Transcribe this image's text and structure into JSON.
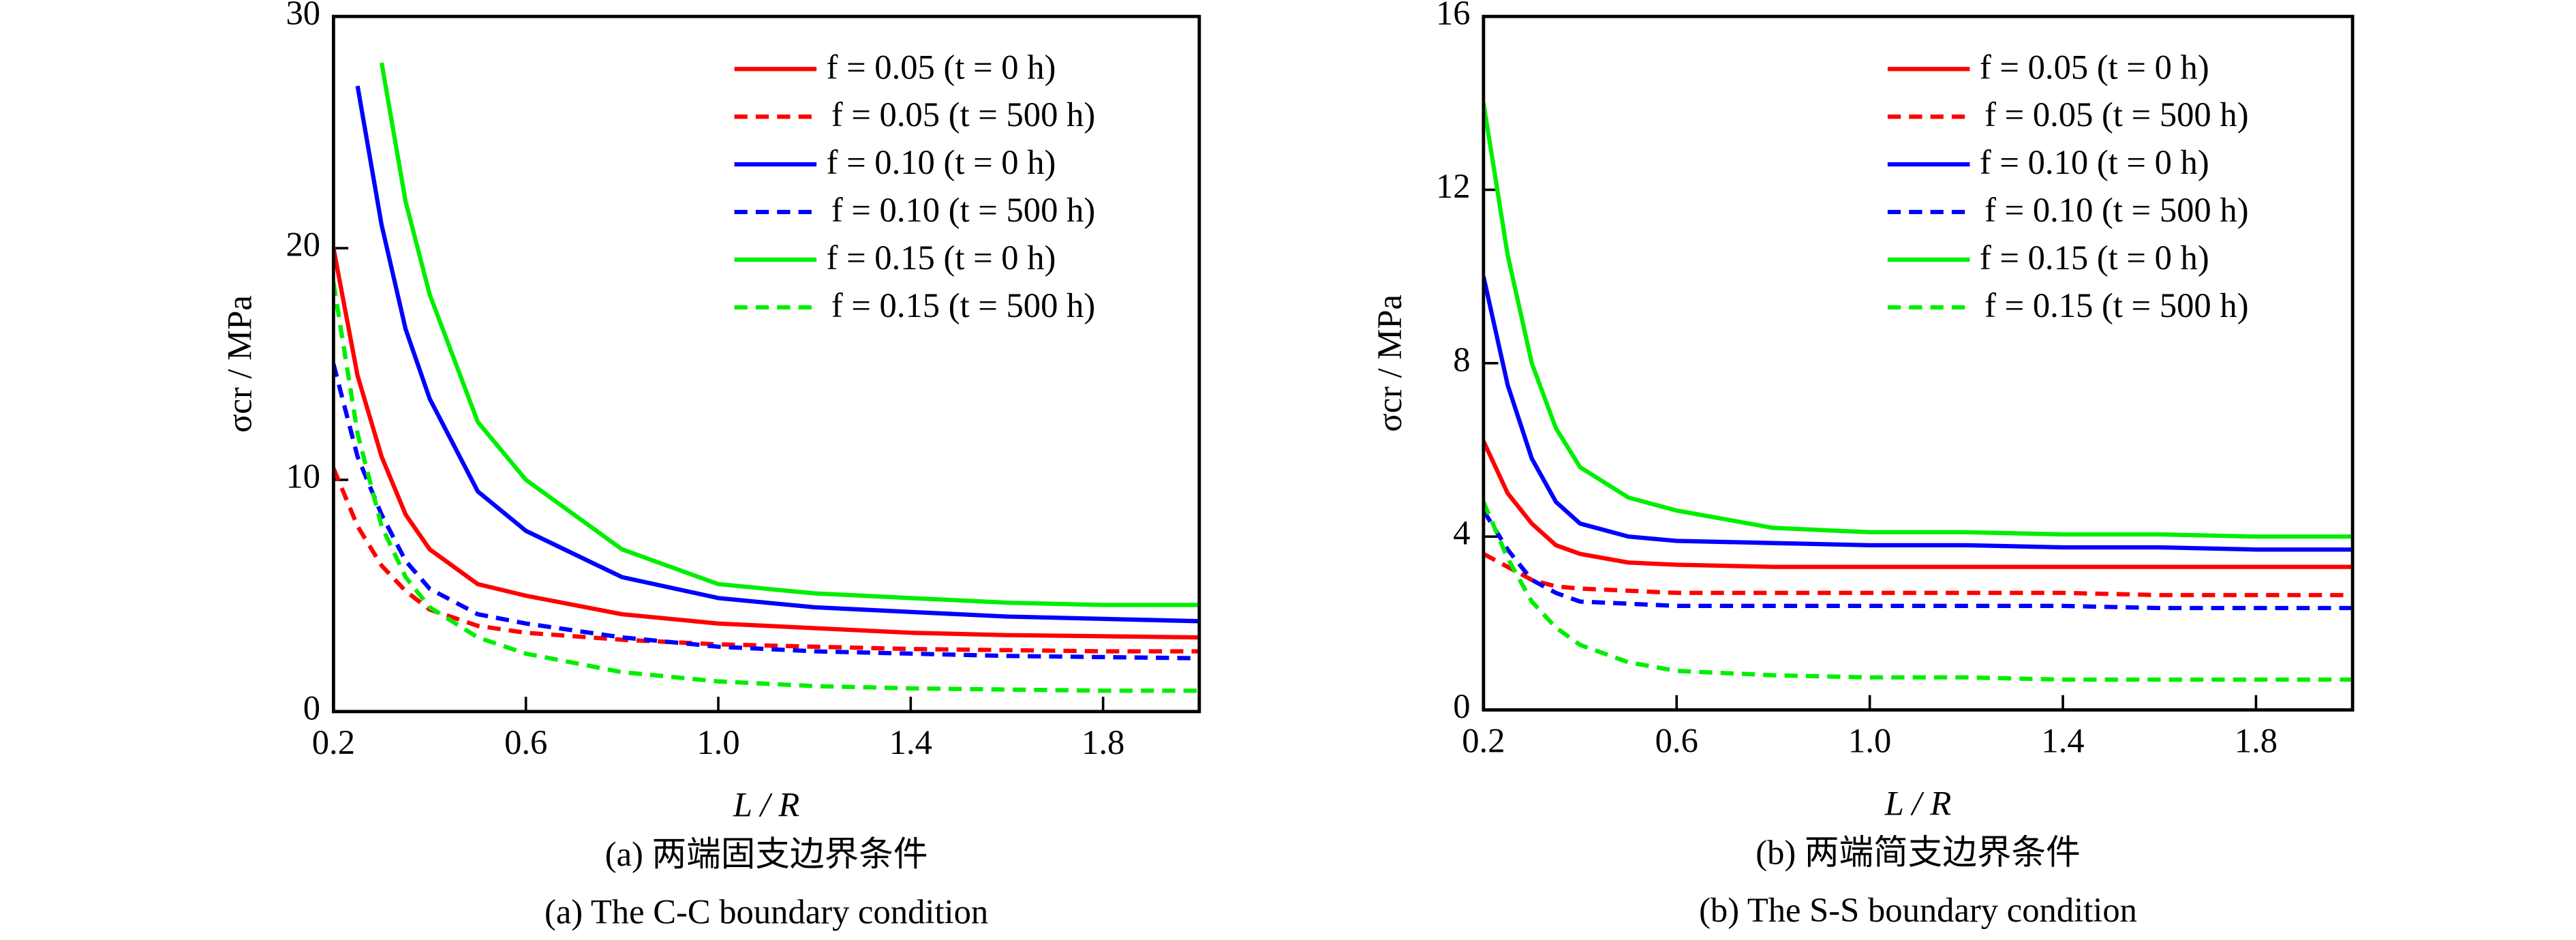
{
  "chart_data": [
    {
      "type": "line",
      "x_label": "L / R",
      "y_label": "σcr / MPa",
      "caption": "(a) 两端固支边界条件",
      "caption_en": "(a) The C-C boundary condition",
      "xlim": [
        0.2,
        2.0
      ],
      "xticks": [
        0.2,
        0.6,
        {
          "value": 1.0,
          "label": "1.0"
        },
        1.4,
        1.8
      ],
      "ylim": [
        0,
        30
      ],
      "yticks": [
        0,
        10,
        20,
        30
      ],
      "legend": "upper right",
      "x": [
        0.2,
        0.25,
        0.3,
        0.35,
        0.4,
        0.5,
        0.6,
        0.8,
        1.0,
        1.2,
        1.4,
        1.6,
        1.8,
        2.0
      ],
      "series": [
        {
          "name": "f = 0.05 (t = 0 h)",
          "color": "#ff0000",
          "dashed": false,
          "values": [
            20,
            14.5,
            11,
            8.5,
            7,
            5.5,
            5,
            4.2,
            3.8,
            3.6,
            3.4,
            3.3,
            3.25,
            3.2
          ]
        },
        {
          "name": "f = 0.05 (t = 500 h)",
          "color": "#ff0000",
          "dashed": true,
          "values": [
            10.5,
            8,
            6.3,
            5.2,
            4.4,
            3.7,
            3.4,
            3.1,
            2.9,
            2.8,
            2.7,
            2.65,
            2.6,
            2.6
          ]
        },
        {
          "name": "f = 0.10 (t = 0 h)",
          "color": "#0000ff",
          "dashed": false,
          "values": [
            null,
            27,
            21,
            16.5,
            13.5,
            9.5,
            7.8,
            5.8,
            4.9,
            4.5,
            4.3,
            4.1,
            4.0,
            3.9
          ]
        },
        {
          "name": "f = 0.10 (t = 500 h)",
          "color": "#0000ff",
          "dashed": true,
          "values": [
            15,
            11,
            8.5,
            6.5,
            5.3,
            4.2,
            3.8,
            3.2,
            2.8,
            2.6,
            2.5,
            2.4,
            2.35,
            2.3
          ]
        },
        {
          "name": "f = 0.15 (t = 0 h)",
          "color": "#00ee00",
          "dashed": false,
          "values": [
            null,
            null,
            28,
            22,
            18,
            12.5,
            10,
            7,
            5.5,
            5.1,
            4.9,
            4.7,
            4.6,
            4.6
          ]
        },
        {
          "name": "f = 0.15 (t = 500 h)",
          "color": "#00ee00",
          "dashed": true,
          "values": [
            18.5,
            12,
            8,
            5.8,
            4.5,
            3.2,
            2.5,
            1.7,
            1.3,
            1.1,
            1.0,
            0.95,
            0.9,
            0.9
          ]
        }
      ]
    },
    {
      "type": "line",
      "x_label": "L / R",
      "y_label": "σcr / MPa",
      "caption": "(b) 两端简支边界条件",
      "caption_en": "(b) The S-S boundary condition",
      "xlim": [
        0.2,
        2.0
      ],
      "xticks": [
        0.2,
        0.6,
        {
          "value": 1.0,
          "label": "1.0"
        },
        1.4,
        1.8
      ],
      "ylim": [
        0,
        16
      ],
      "yticks": [
        0,
        4,
        8,
        12,
        16
      ],
      "legend": "upper right",
      "x": [
        0.2,
        0.25,
        0.3,
        0.35,
        0.4,
        0.5,
        0.6,
        0.8,
        1.0,
        1.2,
        1.4,
        1.6,
        1.8,
        2.0
      ],
      "series": [
        {
          "name": "f = 0.05 (t = 0 h)",
          "color": "#ff0000",
          "dashed": false,
          "values": [
            6.2,
            5.0,
            4.3,
            3.8,
            3.6,
            3.4,
            3.35,
            3.3,
            3.3,
            3.3,
            3.3,
            3.3,
            3.3,
            3.3
          ]
        },
        {
          "name": "f = 0.05 (t = 500 h)",
          "color": "#ff0000",
          "dashed": true,
          "values": [
            3.6,
            3.3,
            3.0,
            2.85,
            2.8,
            2.75,
            2.7,
            2.7,
            2.7,
            2.7,
            2.7,
            2.65,
            2.65,
            2.65
          ]
        },
        {
          "name": "f = 0.10 (t = 0 h)",
          "color": "#0000ff",
          "dashed": false,
          "values": [
            10,
            7.5,
            5.8,
            4.8,
            4.3,
            4.0,
            3.9,
            3.85,
            3.8,
            3.8,
            3.75,
            3.75,
            3.7,
            3.7
          ]
        },
        {
          "name": "f = 0.10 (t = 500 h)",
          "color": "#0000ff",
          "dashed": true,
          "values": [
            4.6,
            3.7,
            3.0,
            2.7,
            2.5,
            2.45,
            2.4,
            2.4,
            2.4,
            2.4,
            2.4,
            2.35,
            2.35,
            2.35
          ]
        },
        {
          "name": "f = 0.15 (t = 0 h)",
          "color": "#00ee00",
          "dashed": false,
          "values": [
            14,
            10.5,
            8,
            6.5,
            5.6,
            4.9,
            4.6,
            4.2,
            4.1,
            4.1,
            4.05,
            4.05,
            4.0,
            4.0
          ]
        },
        {
          "name": "f = 0.15 (t = 500 h)",
          "color": "#00ee00",
          "dashed": true,
          "values": [
            4.8,
            3.5,
            2.5,
            1.9,
            1.5,
            1.1,
            0.9,
            0.8,
            0.75,
            0.75,
            0.7,
            0.7,
            0.7,
            0.7
          ]
        }
      ]
    }
  ]
}
